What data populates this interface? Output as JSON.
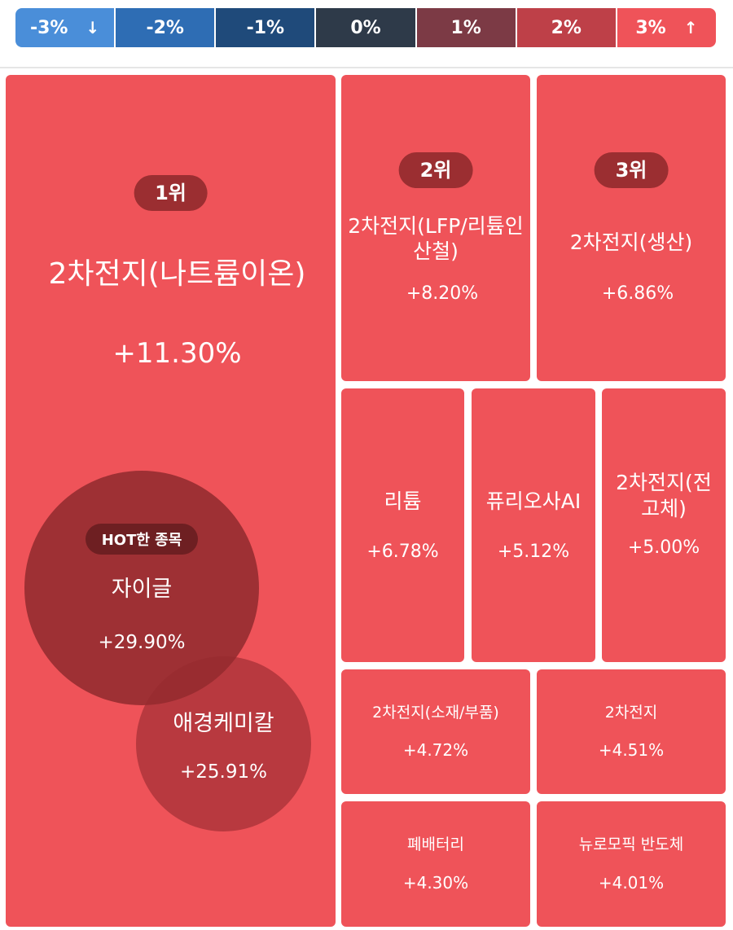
{
  "legend": [
    {
      "label": "-3%",
      "color": "#4a8ed9",
      "arrow": "↓"
    },
    {
      "label": "-2%",
      "color": "#2e6db4",
      "arrow": ""
    },
    {
      "label": "-1%",
      "color": "#1f4a7a",
      "arrow": ""
    },
    {
      "label": "0%",
      "color": "#2e3a49",
      "arrow": ""
    },
    {
      "label": "1%",
      "color": "#7c3a45",
      "arrow": ""
    },
    {
      "label": "2%",
      "color": "#be4048",
      "arrow": ""
    },
    {
      "label": "3%",
      "color": "#ef5359",
      "arrow": "↑"
    }
  ],
  "tiles": {
    "t1": {
      "rank": "1위",
      "name": "2차전지(나트륨이온)",
      "pct": "+11.30%"
    },
    "t2": {
      "rank": "2위",
      "name": "2차전지(LFP/리튬인산철)",
      "pct": "+8.20%"
    },
    "t3": {
      "rank": "3위",
      "name": "2차전지(생산)",
      "pct": "+6.86%"
    },
    "t4": {
      "name": "리튬",
      "pct": "+6.78%"
    },
    "t5": {
      "name": "퓨리오사AI",
      "pct": "+5.12%"
    },
    "t6": {
      "name": "2차전지(전고체)",
      "pct": "+5.00%"
    },
    "t7": {
      "name": "2차전지(소재/부품)",
      "pct": "+4.72%"
    },
    "t8": {
      "name": "2차전지",
      "pct": "+4.51%"
    },
    "t9": {
      "name": "폐배터리",
      "pct": "+4.30%"
    },
    "t10": {
      "name": "뉴로모픽 반도체",
      "pct": "+4.01%"
    }
  },
  "hot": {
    "badge": "HOT한 종목",
    "stocks": [
      {
        "name": "자이글",
        "pct": "+29.90%"
      },
      {
        "name": "애경케미칼",
        "pct": "+25.91%"
      }
    ]
  },
  "colors": {
    "tile_up": "#ef5359",
    "rank_badge": "#9b2e31",
    "bubble": "#8c282c"
  }
}
